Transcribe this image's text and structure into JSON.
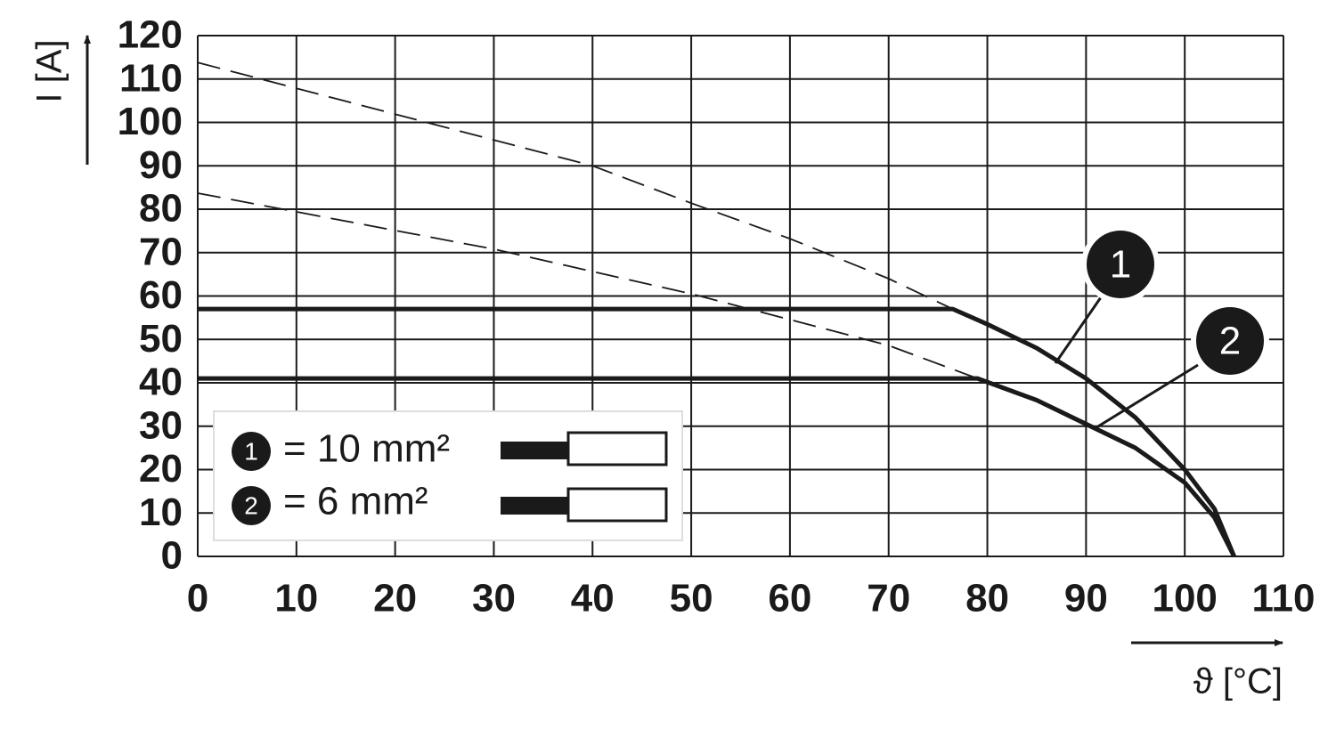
{
  "chart_data": {
    "type": "line",
    "x_label": "ϑ [°C]",
    "y_label": "I [A]",
    "xlim": [
      0,
      110
    ],
    "ylim": [
      0,
      120
    ],
    "xticks": [
      0,
      10,
      20,
      30,
      40,
      50,
      60,
      70,
      80,
      90,
      100,
      110
    ],
    "yticks": [
      0,
      10,
      20,
      30,
      40,
      50,
      60,
      70,
      80,
      90,
      100,
      110,
      120
    ],
    "grid": true,
    "legend": "lower left",
    "series": [
      {
        "name": "1",
        "legend": "= 10 mm²",
        "color": "#1a1a1a",
        "x": [
          0,
          76.5,
          80,
          85,
          90,
          95,
          100,
          103,
          105
        ],
        "values": [
          57,
          57,
          53.5,
          48,
          41,
          32,
          20,
          11,
          0
        ],
        "extrapolation": {
          "x": [
            0,
            40,
            50,
            60,
            70,
            76.5
          ],
          "values": [
            113.8,
            90,
            81.4,
            73.2,
            64,
            57
          ]
        }
      },
      {
        "name": "2",
        "legend": "= 6 mm²",
        "color": "#1a1a1a",
        "x": [
          0,
          79,
          85,
          90,
          95,
          100,
          103,
          105
        ],
        "values": [
          41,
          41,
          36,
          30.5,
          25,
          17,
          9,
          0
        ],
        "extrapolation": {
          "x": [
            0,
            30,
            50,
            70,
            79
          ],
          "values": [
            83.7,
            70.8,
            60.5,
            48.6,
            41
          ]
        }
      }
    ]
  }
}
